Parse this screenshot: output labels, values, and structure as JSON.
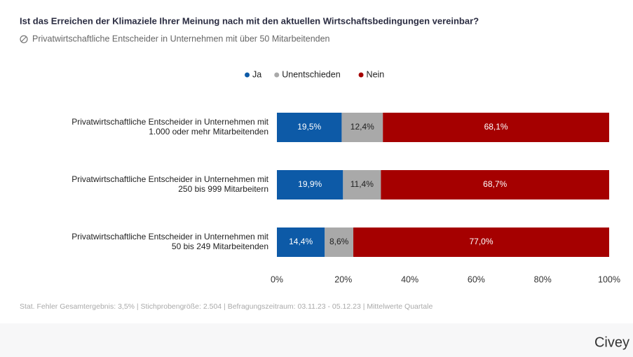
{
  "chart_data": {
    "type": "stacked_bar_horizontal",
    "title": "Ist das Erreichen der Klimaziele Ihrer Meinung nach mit den aktuellen Wirtschaftsbedingungen vereinbar?",
    "subtitle": "Privatwirtschaftliche Entscheider in Unternehmen mit über 50 Mitarbeitenden",
    "categories": [
      [
        "Privatwirtschaftliche Entscheider in Unternehmen mit",
        "1.000 oder mehr Mitarbeitenden"
      ],
      [
        "Privatwirtschaftliche Entscheider in Unternehmen mit",
        "250 bis 999 Mitarbeitern"
      ],
      [
        "Privatwirtschaftliche Entscheider in Unternehmen mit",
        "50 bis 249 Mitarbeitenden"
      ]
    ],
    "series": [
      {
        "name": "Ja",
        "color": "#0d5aa7",
        "values": [
          19.5,
          19.9,
          14.4
        ],
        "value_labels": [
          "19,5%",
          "19,9%",
          "14,4%"
        ]
      },
      {
        "name": "Unentschieden",
        "color": "#a9a9a9",
        "values": [
          12.4,
          11.4,
          8.6
        ],
        "value_labels": [
          "12,4%",
          "11,4%",
          "8,6%"
        ]
      },
      {
        "name": "Nein",
        "color": "#a50000",
        "values": [
          68.1,
          68.7,
          77.0
        ],
        "value_labels": [
          "68,1%",
          "68,7%",
          "77,0%"
        ]
      }
    ],
    "xlim": [
      0,
      100
    ],
    "xticks": [
      {
        "value": 0,
        "label": "0%"
      },
      {
        "value": 20,
        "label": "20%"
      },
      {
        "value": 40,
        "label": "40%"
      },
      {
        "value": 60,
        "label": "60%"
      },
      {
        "value": 80,
        "label": "80%"
      },
      {
        "value": 100,
        "label": "100%"
      }
    ],
    "note": "Stat. Fehler Gesamtergebnis: 3,5% | Stichprobengröße: 2.504 | Befragungszeitraum: 03.11.23 - 05.12.23 | Mittelwerte Quartale",
    "brand": "Civey"
  }
}
